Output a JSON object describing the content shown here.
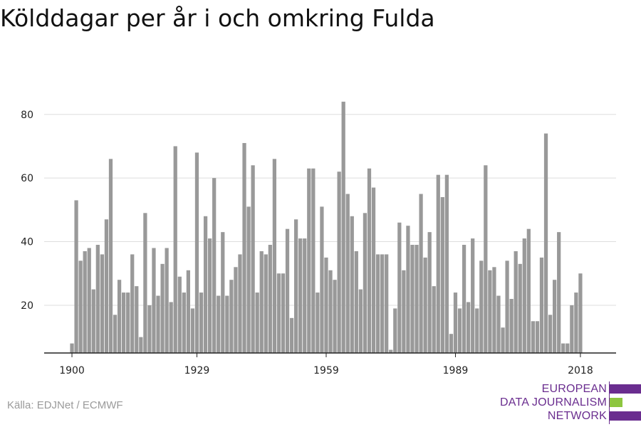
{
  "title": "Kölddagar per år i och omkring Fulda",
  "source": "Källa: EDJNet / ECMWF",
  "logo": {
    "lines": [
      "EUROPEAN",
      "DATA JOURNALISM",
      "NETWORK"
    ],
    "colors": {
      "purple": "#6a2d8f",
      "green": "#8dc63f"
    }
  },
  "chart_data": {
    "type": "bar",
    "x_start": 1900,
    "x_end": 2020,
    "values": [
      8,
      53,
      34,
      37,
      38,
      25,
      39,
      36,
      47,
      66,
      17,
      28,
      24,
      24,
      36,
      26,
      10,
      49,
      20,
      38,
      23,
      33,
      38,
      21,
      70,
      29,
      24,
      31,
      19,
      68,
      24,
      48,
      41,
      60,
      23,
      43,
      23,
      28,
      32,
      36,
      71,
      51,
      64,
      24,
      37,
      36,
      39,
      66,
      30,
      30,
      44,
      16,
      47,
      41,
      41,
      63,
      63,
      24,
      51,
      35,
      31,
      28,
      62,
      84,
      55,
      48,
      37,
      25,
      49,
      63,
      57,
      36,
      36,
      36,
      6,
      19,
      46,
      31,
      45,
      39,
      39,
      55,
      35,
      43,
      26,
      61,
      54,
      61,
      11,
      24,
      19,
      39,
      21,
      41,
      19,
      34,
      64,
      31,
      32,
      23,
      13,
      34,
      22,
      37,
      33,
      41,
      44,
      15,
      15,
      35,
      74,
      17,
      28,
      43,
      8,
      8,
      20,
      24,
      30
    ],
    "xticks": [
      "1900",
      "1929",
      "1959",
      "1989",
      "2018"
    ],
    "yticks": [
      20,
      40,
      60,
      80
    ],
    "ylim": [
      5,
      90
    ],
    "grid": true,
    "bar_color": "#999999"
  }
}
